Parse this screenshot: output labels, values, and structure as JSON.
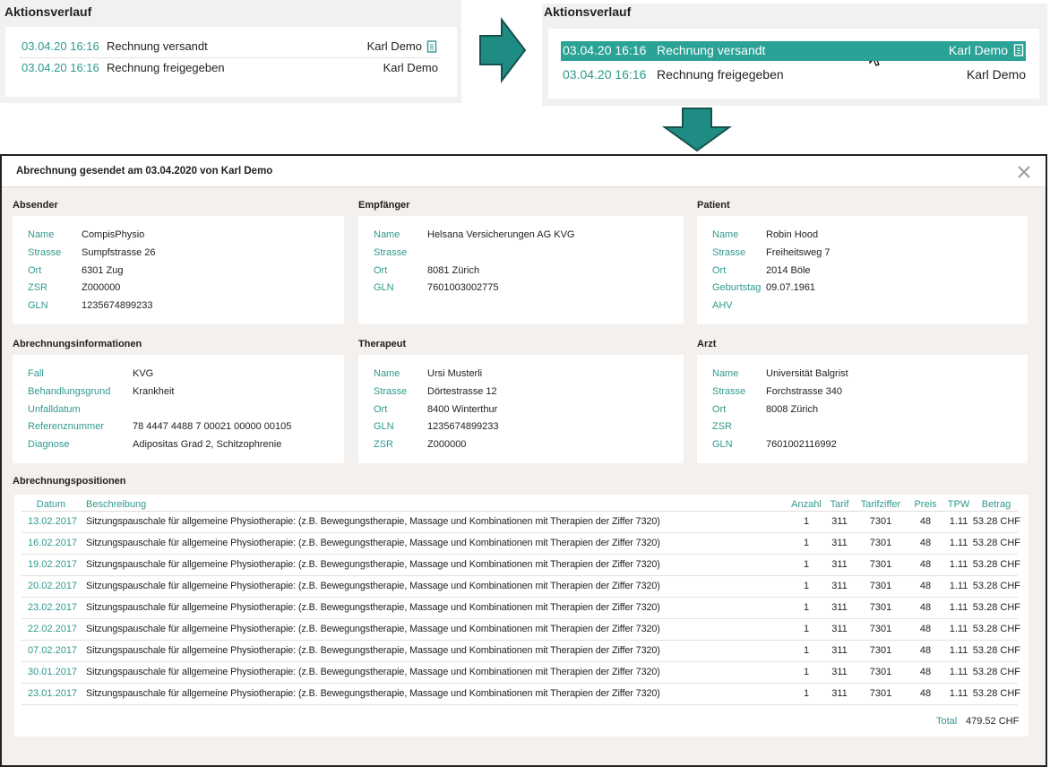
{
  "history_panel": {
    "title": "Aktionsverlauf",
    "rows": [
      {
        "time": "03.04.20 16:16",
        "action": "Rechnung versandt",
        "user": "Karl Demo"
      },
      {
        "time": "03.04.20 16:16",
        "action": "Rechnung freigegeben",
        "user": "Karl Demo"
      }
    ]
  },
  "history_panel_selected": {
    "title": "Aktionsverlauf",
    "rows": [
      {
        "time": "03.04.20 16:16",
        "action": "Rechnung versandt",
        "user": "Karl Demo"
      },
      {
        "time": "03.04.20 16:16",
        "action": "Rechnung freigegeben",
        "user": "Karl Demo"
      }
    ]
  },
  "modal": {
    "title": "Abrechnung gesendet am 03.04.2020 von Karl Demo",
    "sections": [
      {
        "title": "Absender",
        "fields": [
          {
            "label": "Name",
            "value": "CompisPhysio"
          },
          {
            "label": "Strasse",
            "value": "Sumpfstrasse 26"
          },
          {
            "label": "Ort",
            "value": "6301 Zug"
          },
          {
            "label": "ZSR",
            "value": "Z000000"
          },
          {
            "label": "GLN",
            "value": "1235674899233"
          }
        ]
      },
      {
        "title": "Empfänger",
        "fields": [
          {
            "label": "Name",
            "value": "Helsana Versicherungen AG KVG"
          },
          {
            "label": "Strasse"
          },
          {
            "label": "Ort",
            "value": "8081 Zürich"
          },
          {
            "label": "GLN",
            "value": "7601003002775"
          }
        ]
      },
      {
        "title": "Patient",
        "fields": [
          {
            "label": "Name",
            "value": "Robin Hood"
          },
          {
            "label": "Strasse",
            "value": "Freiheitsweg 7"
          },
          {
            "label": "Ort",
            "value": "2014 Böle"
          },
          {
            "label": "Geburtstag",
            "value": "09.07.1961"
          },
          {
            "label": "AHV"
          }
        ]
      },
      {
        "title": "Abrechnungsinformationen",
        "fields": [
          {
            "label": "Fall",
            "value": "KVG"
          },
          {
            "label": "Behandlungsgrund",
            "value": "Krankheit"
          },
          {
            "label": "Unfalldatum"
          },
          {
            "label": "Referenznummer",
            "value": "78 4447 4488 7 00021 00000 00105"
          },
          {
            "label": "Diagnose",
            "value": "Adipositas Grad 2, Schitzophrenie"
          }
        ]
      },
      {
        "title": "Therapeut",
        "fields": [
          {
            "label": "Name",
            "value": "Ursi Musterli"
          },
          {
            "label": "Strasse",
            "value": "Dörtestrasse 12"
          },
          {
            "label": "Ort",
            "value": "8400 Winterthur"
          },
          {
            "label": "GLN",
            "value": "1235674899233"
          },
          {
            "label": "ZSR",
            "value": "Z000000"
          }
        ]
      },
      {
        "title": "Arzt",
        "fields": [
          {
            "label": "Name",
            "value": "Universität Balgrist"
          },
          {
            "label": "Strasse",
            "value": "Forchstrasse 340"
          },
          {
            "label": "Ort",
            "value": "8008 Zürich"
          },
          {
            "label": "ZSR"
          },
          {
            "label": "GLN",
            "value": "7601002116992"
          }
        ]
      }
    ],
    "positions": {
      "title": "Abrechnungspositionen",
      "columns": [
        "Datum",
        "Beschreibung",
        "Anzahl",
        "Tarif",
        "Tarifziffer",
        "Preis",
        "TPW",
        "Betrag"
      ],
      "rows": [
        [
          "13.02.2017",
          "Sitzungspauschale für allgemeine Physiotherapie: (z.B. Bewegungstherapie, Massage und Kombinationen mit Therapien der Ziffer 7320)",
          "1",
          "311",
          "7301",
          "48",
          "1.11",
          "53.28 CHF"
        ],
        [
          "16.02.2017",
          "Sitzungspauschale für allgemeine Physiotherapie: (z.B. Bewegungstherapie, Massage und Kombinationen mit Therapien der Ziffer 7320)",
          "1",
          "311",
          "7301",
          "48",
          "1.11",
          "53.28 CHF"
        ],
        [
          "19.02.2017",
          "Sitzungspauschale für allgemeine Physiotherapie: (z.B. Bewegungstherapie, Massage und Kombinationen mit Therapien der Ziffer 7320)",
          "1",
          "311",
          "7301",
          "48",
          "1.11",
          "53.28 CHF"
        ],
        [
          "20.02.2017",
          "Sitzungspauschale für allgemeine Physiotherapie: (z.B. Bewegungstherapie, Massage und Kombinationen mit Therapien der Ziffer 7320)",
          "1",
          "311",
          "7301",
          "48",
          "1.11",
          "53.28 CHF"
        ],
        [
          "23.02.2017",
          "Sitzungspauschale für allgemeine Physiotherapie: (z.B. Bewegungstherapie, Massage und Kombinationen mit Therapien der Ziffer 7320)",
          "1",
          "311",
          "7301",
          "48",
          "1.11",
          "53.28 CHF"
        ],
        [
          "22.02.2017",
          "Sitzungspauschale für allgemeine Physiotherapie: (z.B. Bewegungstherapie, Massage und Kombinationen mit Therapien der Ziffer 7320)",
          "1",
          "311",
          "7301",
          "48",
          "1.11",
          "53.28 CHF"
        ],
        [
          "07.02.2017",
          "Sitzungspauschale für allgemeine Physiotherapie: (z.B. Bewegungstherapie, Massage und Kombinationen mit Therapien der Ziffer 7320)",
          "1",
          "311",
          "7301",
          "48",
          "1.11",
          "53.28 CHF"
        ],
        [
          "30.01.2017",
          "Sitzungspauschale für allgemeine Physiotherapie: (z.B. Bewegungstherapie, Massage und Kombinationen mit Therapien der Ziffer 7320)",
          "1",
          "311",
          "7301",
          "48",
          "1.11",
          "53.28 CHF"
        ],
        [
          "23.01.2017",
          "Sitzungspauschale für allgemeine Physiotherapie: (z.B. Bewegungstherapie, Massage und Kombinationen mit Therapien der Ziffer 7320)",
          "1",
          "311",
          "7301",
          "48",
          "1.11",
          "53.28 CHF"
        ]
      ],
      "total_label": "Total",
      "total": "479.52 CHF"
    }
  }
}
